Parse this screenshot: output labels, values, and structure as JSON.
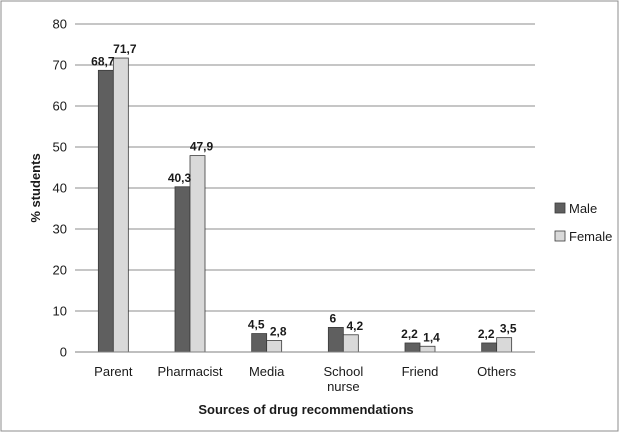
{
  "chart_data": {
    "type": "bar",
    "title": "",
    "xlabel": "Sources of drug recommendations",
    "ylabel": "% students",
    "ylim": [
      0,
      80
    ],
    "yticks": [
      "0",
      "10",
      "20",
      "30",
      "40",
      "50",
      "60",
      "70",
      "80"
    ],
    "grid": true,
    "legend_position": "right",
    "categories": [
      [
        "Parent"
      ],
      [
        "Pharmacist"
      ],
      [
        "Media"
      ],
      [
        "School",
        "nurse"
      ],
      [
        "Friend"
      ],
      [
        "Others"
      ]
    ],
    "series": [
      {
        "name": "Male",
        "color": "#5f5f5f",
        "values": [
          68.7,
          40.3,
          4.5,
          6,
          2.2,
          2.2
        ],
        "labels": [
          "68,7",
          "40,3",
          "4,5",
          "6",
          "2,2",
          "2,2"
        ]
      },
      {
        "name": "Female",
        "color": "#d9d9d9",
        "values": [
          71.7,
          47.9,
          2.8,
          4.2,
          1.4,
          3.5
        ],
        "labels": [
          "71,7",
          "47,9",
          "2,8",
          "4,2",
          "1,4",
          "3,5"
        ]
      }
    ]
  }
}
